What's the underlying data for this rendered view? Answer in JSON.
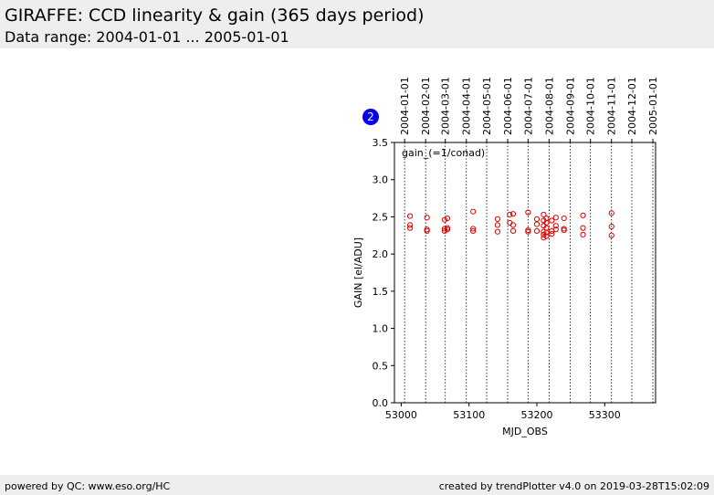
{
  "header": {
    "title": "GIRAFFE: CCD linearity & gain (365 days period)",
    "subtitle": "Data range: 2004-01-01 ... 2005-01-01"
  },
  "footer": {
    "left": "powered by QC: www.eso.org/HC",
    "right": "created by trendPlotter v4.0 on 2019-03-28T15:02:09"
  },
  "badge": {
    "text": "2",
    "color": "#0000ee"
  },
  "chart_data": {
    "type": "scatter",
    "xlabel": "MJD_OBS",
    "ylabel": "GAIN [el/ADU]",
    "annotation": "gain_(=1/conad)",
    "xlim": [
      52990,
      53375
    ],
    "ylim": [
      0.0,
      3.5
    ],
    "xticks": [
      53000,
      53100,
      53200,
      53300
    ],
    "xtick_labels": [
      "53000",
      "53100",
      "53200",
      "53300"
    ],
    "yticks": [
      0.0,
      0.5,
      1.0,
      1.5,
      2.0,
      2.5,
      3.0,
      3.5
    ],
    "ytick_labels": [
      "0.0",
      "0.5",
      "1.0",
      "1.5",
      "2.0",
      "2.5",
      "3.0",
      "3.5"
    ],
    "month_lines": [
      {
        "mjd": 53005,
        "label": "2004-01-01"
      },
      {
        "mjd": 53036,
        "label": "2004-02-01"
      },
      {
        "mjd": 53065,
        "label": "2004-03-01"
      },
      {
        "mjd": 53096,
        "label": "2004-04-01"
      },
      {
        "mjd": 53126,
        "label": "2004-05-01"
      },
      {
        "mjd": 53157,
        "label": "2004-06-01"
      },
      {
        "mjd": 53187,
        "label": "2004-07-01"
      },
      {
        "mjd": 53218,
        "label": "2004-08-01"
      },
      {
        "mjd": 53249,
        "label": "2004-09-01"
      },
      {
        "mjd": 53279,
        "label": "2004-10-01"
      },
      {
        "mjd": 53310,
        "label": "2004-11-01"
      },
      {
        "mjd": 53340,
        "label": "2004-12-01"
      },
      {
        "mjd": 53371,
        "label": "2005-01-01"
      }
    ],
    "marker_color": "#dd0000",
    "series": [
      {
        "points": [
          [
            53013,
            2.51
          ],
          [
            53013,
            2.39
          ],
          [
            53013,
            2.35
          ],
          [
            53038,
            2.49
          ],
          [
            53038,
            2.33
          ],
          [
            53038,
            2.31
          ],
          [
            53064,
            2.46
          ],
          [
            53064,
            2.34
          ],
          [
            53064,
            2.31
          ],
          [
            53068,
            2.48
          ],
          [
            53068,
            2.35
          ],
          [
            53068,
            2.33
          ],
          [
            53106,
            2.57
          ],
          [
            53106,
            2.34
          ],
          [
            53106,
            2.31
          ],
          [
            53142,
            2.47
          ],
          [
            53142,
            2.39
          ],
          [
            53142,
            2.3
          ],
          [
            53160,
            2.53
          ],
          [
            53160,
            2.42
          ],
          [
            53165,
            2.54
          ],
          [
            53165,
            2.39
          ],
          [
            53165,
            2.31
          ],
          [
            53187,
            2.56
          ],
          [
            53187,
            2.32
          ],
          [
            53187,
            2.3
          ],
          [
            53200,
            2.47
          ],
          [
            53200,
            2.4
          ],
          [
            53200,
            2.31
          ],
          [
            53210,
            2.53
          ],
          [
            53210,
            2.45
          ],
          [
            53210,
            2.38
          ],
          [
            53210,
            2.3
          ],
          [
            53210,
            2.26
          ],
          [
            53210,
            2.22
          ],
          [
            53214,
            2.48
          ],
          [
            53214,
            2.42
          ],
          [
            53214,
            2.35
          ],
          [
            53214,
            2.29
          ],
          [
            53214,
            2.24
          ],
          [
            53222,
            2.45
          ],
          [
            53222,
            2.31
          ],
          [
            53222,
            2.27
          ],
          [
            53228,
            2.49
          ],
          [
            53228,
            2.38
          ],
          [
            53228,
            2.33
          ],
          [
            53240,
            2.48
          ],
          [
            53240,
            2.34
          ],
          [
            53240,
            2.32
          ],
          [
            53268,
            2.52
          ],
          [
            53268,
            2.35
          ],
          [
            53268,
            2.26
          ],
          [
            53310,
            2.55
          ],
          [
            53310,
            2.37
          ],
          [
            53310,
            2.25
          ]
        ]
      }
    ]
  }
}
